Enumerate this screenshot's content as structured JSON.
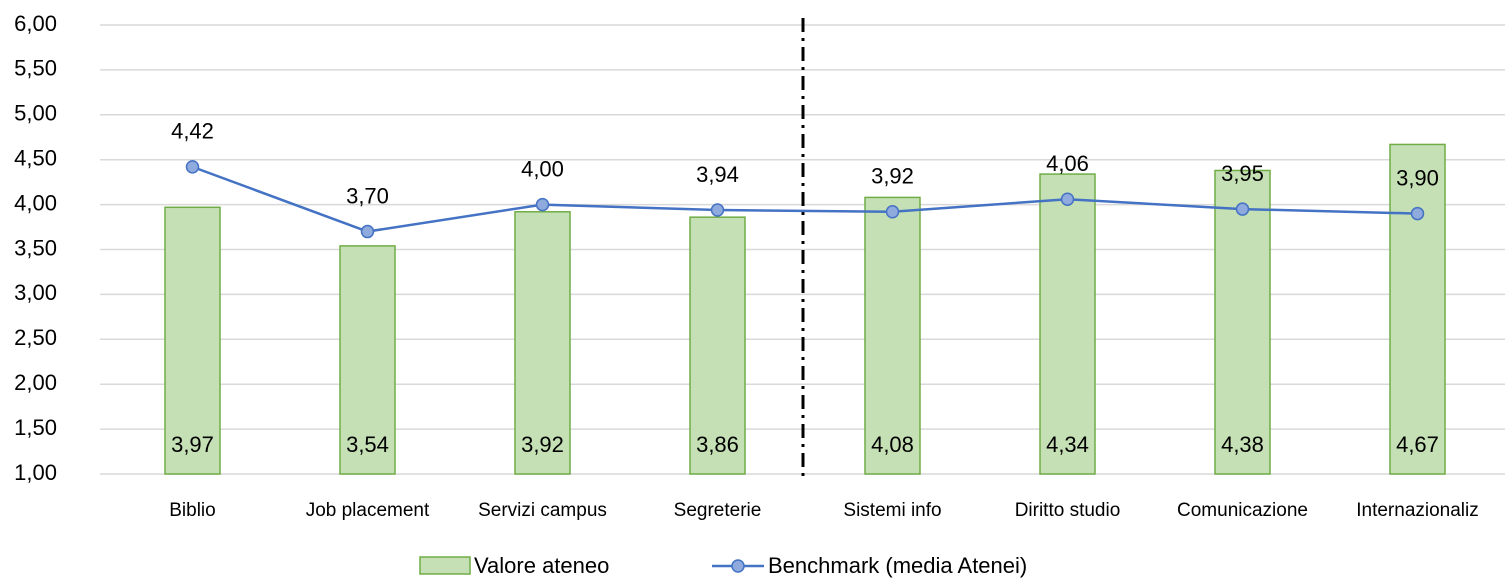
{
  "chart_data": {
    "type": "bar",
    "categories": [
      "Biblio",
      "Job placement",
      "Servizi campus",
      "Segreterie",
      "Sistemi info",
      "Diritto studio",
      "Comunicazione",
      "Internazionaliz"
    ],
    "series": [
      {
        "name": "Valore ateneo",
        "type": "bar",
        "color": "#c5e0b4",
        "edge_color": "#70ad47",
        "values": [
          3.97,
          3.54,
          3.92,
          3.86,
          4.08,
          4.34,
          4.38,
          4.67
        ],
        "value_labels": [
          "3,97",
          "3,54",
          "3,92",
          "3,86",
          "4,08",
          "4,34",
          "4,38",
          "4,67"
        ]
      },
      {
        "name": "Benchmark (media Atenei)",
        "type": "line",
        "color": "#4472c4",
        "marker_color": "#8faadc",
        "values": [
          4.42,
          3.7,
          4.0,
          3.94,
          3.92,
          4.06,
          3.95,
          3.9
        ],
        "value_labels": [
          "4,42",
          "3,70",
          "4,00",
          "3,94",
          "3,92",
          "4,06",
          "3,95",
          "3,90"
        ]
      }
    ],
    "ylim": [
      1,
      6
    ],
    "yticks": [
      {
        "value": 1,
        "label": "1,00"
      },
      {
        "value": 1.5,
        "label": "1,50"
      },
      {
        "value": 2,
        "label": "2,00"
      },
      {
        "value": 2.5,
        "label": "2,50"
      },
      {
        "value": 3,
        "label": "3,00"
      },
      {
        "value": 3.5,
        "label": "3,50"
      },
      {
        "value": 4,
        "label": "4,00"
      },
      {
        "value": 4.5,
        "label": "4,50"
      },
      {
        "value": 5,
        "label": "5,00"
      },
      {
        "value": 5.5,
        "label": "5,50"
      },
      {
        "value": 6,
        "label": "6,00"
      }
    ],
    "grid": true,
    "legend": "bottom"
  }
}
